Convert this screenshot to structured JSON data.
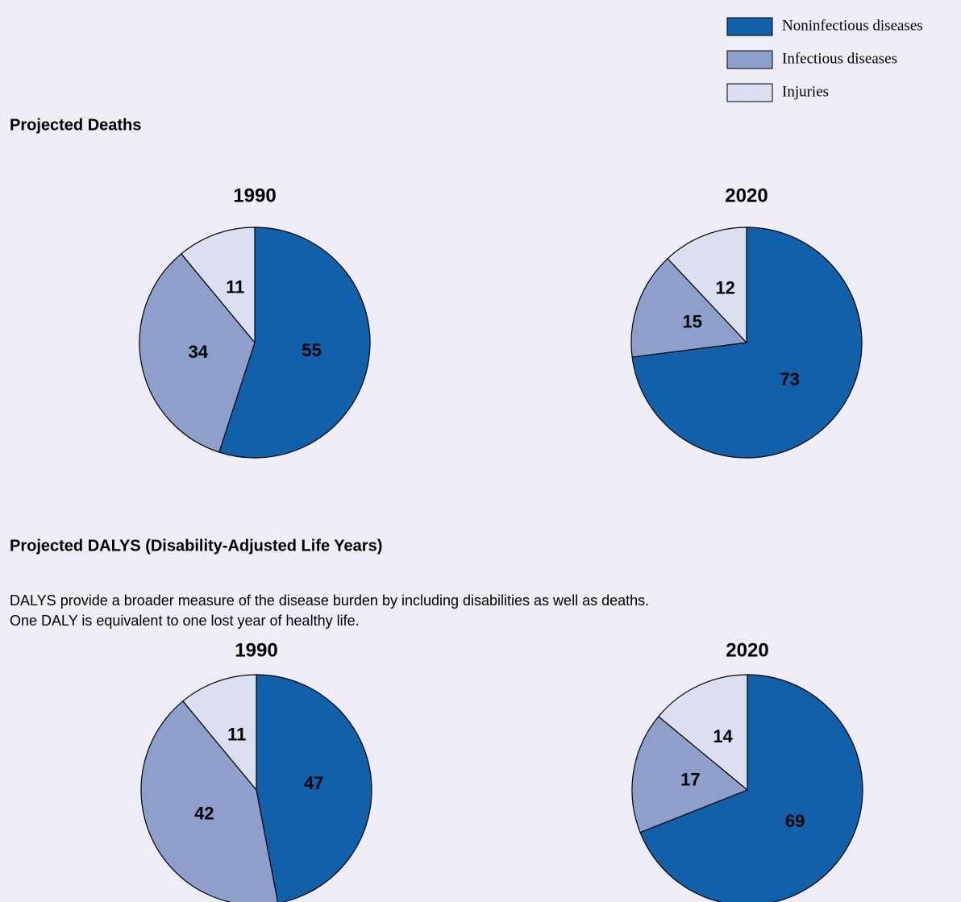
{
  "headings": [
    "Projected Deaths",
    "Projected DALYS (Disability-Adjusted Life Years)"
  ],
  "note": [
    "DALYS provide a broader measure of the disease burden by including disabilities as well as deaths.",
    "One DALY is equivalent to one lost year of healthy life."
  ],
  "chart_data": [
    {
      "type": "pie",
      "title": "1990",
      "categories": [
        "Noninfectious diseases",
        "Infectious diseases",
        "Injuries"
      ],
      "values": [
        55,
        34,
        11
      ],
      "colors": [
        "#1060aa",
        "#8e9fcb",
        "#dcdff0"
      ]
    },
    {
      "type": "pie",
      "title": "2020",
      "categories": [
        "Noninfectious diseases",
        "Infectious diseases",
        "Injuries"
      ],
      "values": [
        73,
        15,
        12
      ],
      "colors": [
        "#1060aa",
        "#8e9fcb",
        "#dcdff0"
      ]
    },
    {
      "type": "pie",
      "title": "1990",
      "categories": [
        "Noninfectious diseases",
        "Infectious diseases",
        "Injuries"
      ],
      "values": [
        47,
        42,
        11
      ],
      "colors": [
        "#1060aa",
        "#8e9fcb",
        "#dcdff0"
      ]
    },
    {
      "type": "pie",
      "title": "2020",
      "categories": [
        "Noninfectious diseases",
        "Infectious diseases",
        "Injuries"
      ],
      "values": [
        69,
        17,
        14
      ],
      "colors": [
        "#1060aa",
        "#8e9fcb",
        "#dcdff0"
      ]
    }
  ]
}
